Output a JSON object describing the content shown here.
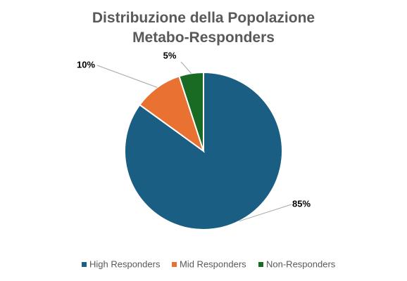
{
  "chart_data": {
    "type": "pie",
    "title": "Distribuzione della Popolazione Metabo-Responders",
    "categories": [
      "High Responders",
      "Mid Responders",
      "Non-Responders"
    ],
    "values": [
      85,
      10,
      5
    ],
    "value_labels": [
      "85%",
      "10%",
      "5%"
    ],
    "colors": [
      "#1b5e84",
      "#e97132",
      "#196b24"
    ],
    "legend": "bottom"
  }
}
